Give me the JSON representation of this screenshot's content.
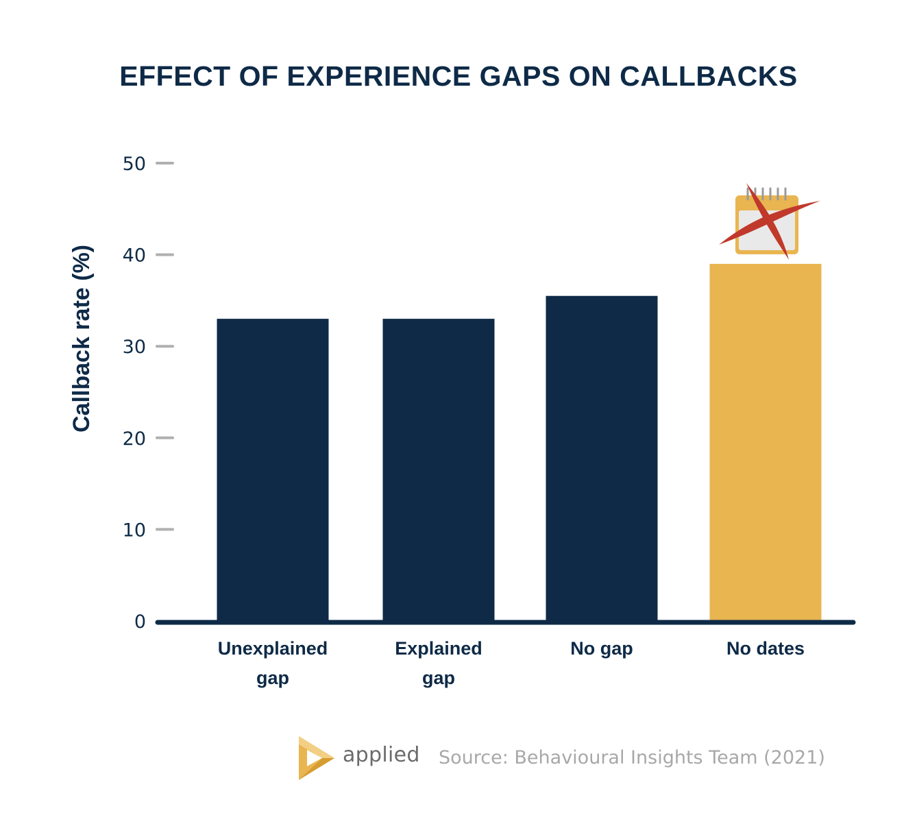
{
  "chart_data": {
    "type": "bar",
    "title": "EFFECT OF EXPERIENCE GAPS ON CALLBACKS",
    "xlabel": "",
    "ylabel": "Callback rate (%)",
    "ylim": [
      0,
      50
    ],
    "yticks": [
      0,
      10,
      20,
      30,
      40,
      50
    ],
    "categories": [
      [
        "Unexplained",
        "gap"
      ],
      [
        "Explained",
        "gap"
      ],
      [
        "No gap"
      ],
      [
        "No dates"
      ]
    ],
    "values": [
      33,
      33,
      35.5,
      39
    ],
    "colors": [
      "#0e2a47",
      "#0e2a47",
      "#0e2a47",
      "#e9b550"
    ],
    "highlight_index": 3,
    "annotation_icon": "crossed-out-calendar-icon",
    "grid": false
  },
  "footer": {
    "brand": "applied",
    "source": "Source: Behavioural Insights Team (2021)",
    "logo_icon": "applied-play-logo-icon",
    "logo_color": "#e9b550"
  },
  "colors": {
    "navy": "#0e2a47",
    "gold": "#e9b550",
    "tick": "#b0b0b0",
    "cross": "#c0392b"
  }
}
